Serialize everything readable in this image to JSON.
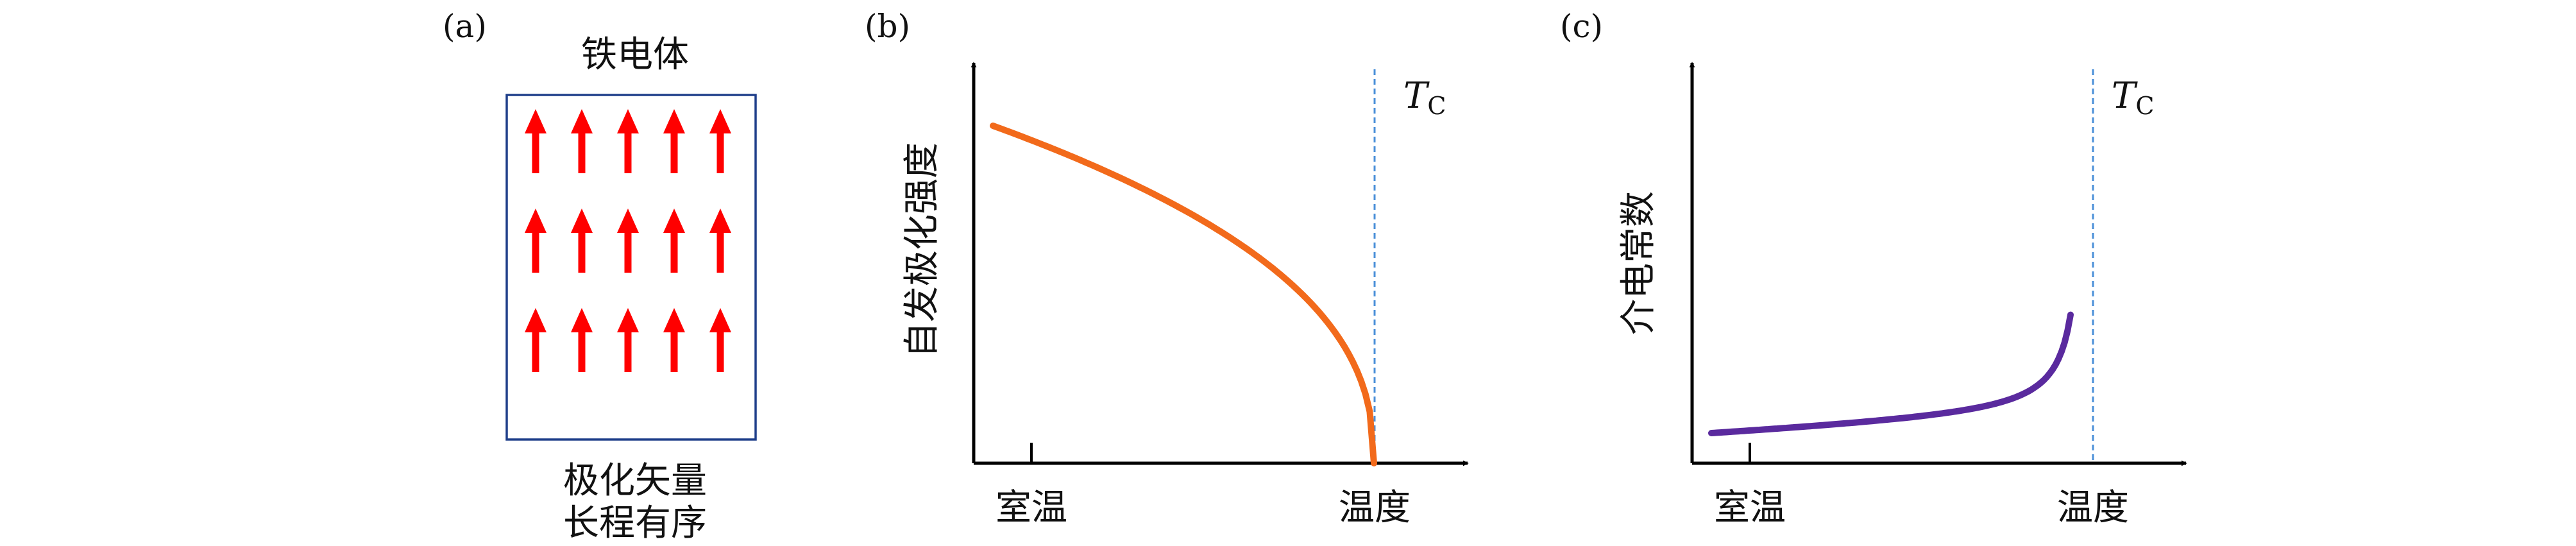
{
  "panel_a": {
    "label": "(a)",
    "title": "铁电体",
    "caption_line1": "极化矢量",
    "caption_line2": "长程有序",
    "box_color": "#1f3f8a",
    "arrow_color": "#ff0000",
    "arrow_rows": 3,
    "arrow_cols": 5
  },
  "panel_b": {
    "label": "(b)",
    "ylabel": "自发极化强度",
    "x_tick_room": "室温",
    "x_label_temp": "温度",
    "tc_label_main": "T",
    "tc_label_sub": "C",
    "curve_color": "#f26a1b",
    "tc_line_color": "#4a8fd8",
    "curve_shape": "decreasing-to-zero-at-Tc"
  },
  "panel_c": {
    "label": "(c)",
    "ylabel": "介电常数",
    "x_tick_room": "室温",
    "x_label_temp": "温度",
    "tc_label_main": "T",
    "tc_label_sub": "C",
    "curve_color": "#5a2a9e",
    "tc_line_color": "#4a8fd8",
    "curve_shape": "diverging-at-Tc"
  }
}
